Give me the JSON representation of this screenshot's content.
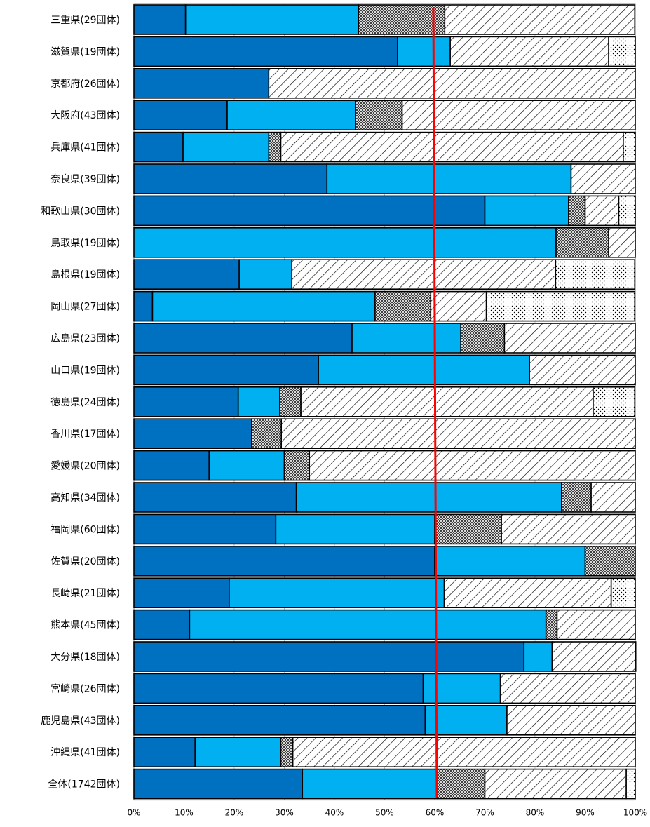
{
  "chart_data": {
    "type": "bar",
    "orientation": "horizontal",
    "stacked": "percent",
    "title": "",
    "xlabel": "",
    "ylabel": "",
    "xlim": [
      0,
      100
    ],
    "x_ticks": [
      "0%",
      "10%",
      "20%",
      "30%",
      "40%",
      "50%",
      "60%",
      "70%",
      "80%",
      "90%",
      "100%"
    ],
    "grid": true,
    "legend": "none",
    "categories": [
      "三重県(29団体)",
      "滋賀県(19団体)",
      "京都府(26団体)",
      "大阪府(43団体)",
      "兵庫県(41団体)",
      "奈良県(39団体)",
      "和歌山県(30団体)",
      "鳥取県(19団体)",
      "島根県(19団体)",
      "岡山県(27団体)",
      "広島県(23団体)",
      "山口県(19団体)",
      "徳島県(24団体)",
      "香川県(17団体)",
      "愛媛県(20団体)",
      "高知県(34団体)",
      "福岡県(60団体)",
      "佐賀県(20団体)",
      "長崎県(21団体)",
      "熊本県(45団体)",
      "大分県(18団体)",
      "宮崎県(26団体)",
      "鹿児島県(43団体)",
      "沖縄県(41団体)",
      "全体(1742団体)"
    ],
    "series": [
      {
        "values": [
          10.3,
          52.6,
          26.9,
          18.6,
          9.8,
          38.5,
          70.0,
          0,
          21.0,
          3.7,
          43.5,
          36.8,
          20.8,
          23.5,
          15.0,
          32.4,
          28.3,
          60.0,
          19.0,
          11.1,
          77.8,
          57.7,
          58.1,
          12.2,
          33.6
        ],
        "color": "#0070C0",
        "pattern": "solid"
      },
      {
        "values": [
          34.5,
          10.5,
          0,
          25.6,
          17.1,
          48.7,
          16.7,
          84.2,
          10.5,
          44.4,
          21.7,
          42.1,
          8.3,
          0,
          15.0,
          52.9,
          31.7,
          30.0,
          42.9,
          71.1,
          5.6,
          15.4,
          16.3,
          17.1,
          26.9
        ],
        "color": "#00B0F0",
        "pattern": "solid"
      },
      {
        "values": [
          17.2,
          0,
          0,
          9.3,
          2.4,
          0,
          3.3,
          10.5,
          0,
          11.1,
          8.7,
          0,
          4.2,
          5.9,
          5.0,
          5.9,
          13.3,
          10.0,
          0,
          2.2,
          0,
          0,
          0,
          2.4,
          9.5
        ],
        "color": "#808080",
        "pattern": "crosshatch"
      },
      {
        "values": [
          37.9,
          31.6,
          73.1,
          46.5,
          68.3,
          12.8,
          6.7,
          5.3,
          52.6,
          11.1,
          26.1,
          21.1,
          58.3,
          70.6,
          65.0,
          8.8,
          26.7,
          0,
          33.3,
          15.6,
          16.7,
          26.9,
          25.6,
          68.3,
          28.2
        ],
        "color": "#000000",
        "pattern": "diagonal"
      },
      {
        "values": [
          0,
          5.3,
          0,
          0,
          2.4,
          0,
          3.3,
          0,
          15.8,
          29.6,
          0,
          0,
          8.3,
          0,
          0,
          0,
          0,
          0,
          4.8,
          0,
          0,
          0,
          0,
          0,
          1.8
        ],
        "color": "#000000",
        "pattern": "dots"
      }
    ],
    "reference_line": {
      "value": 60,
      "color": "#FF0000"
    }
  }
}
